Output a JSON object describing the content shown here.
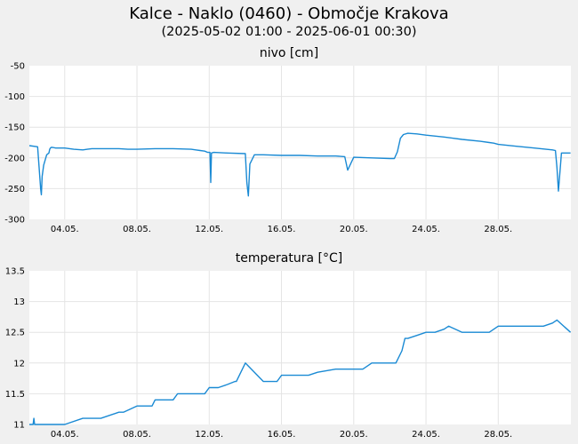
{
  "title": "Kalce - Naklo (0460) - Območje Krakova",
  "subtitle": "(2025-05-02 01:00 - 2025-06-01 00:30)",
  "colors": {
    "series": "#1a8ad4",
    "background": "#f0f0f0",
    "plot": "#ffffff",
    "grid": "#e4e4e4"
  },
  "chart_data": [
    {
      "type": "line",
      "title": "nivo [cm]",
      "x_ticks": [
        "04.05.",
        "08.05.",
        "12.05.",
        "16.05.",
        "20.05.",
        "24.05.",
        "28.05."
      ],
      "y_ticks": [
        "-50",
        "-100",
        "-150",
        "-200",
        "-250",
        "-300"
      ],
      "xlim": [
        "2025-05-02 01:00",
        "2025-06-01 00:30"
      ],
      "ylim": [
        -300,
        -50
      ],
      "grid": true,
      "series": [
        {
          "x": [
            "2025-05-02 00:00",
            "2025-05-02 12:00",
            "2025-05-02 16:00",
            "2025-05-02 17:00",
            "2025-05-02 18:00",
            "2025-05-02 20:00",
            "2025-05-03 00:00",
            "2025-05-03 03:00",
            "2025-05-03 04:00",
            "2025-05-03 05:00",
            "2025-05-03 06:00",
            "2025-05-03 08:00",
            "2025-05-03 12:00",
            "2025-05-04 00:00",
            "2025-05-04 12:00",
            "2025-05-05 00:00",
            "2025-05-05 06:00",
            "2025-05-05 12:00",
            "2025-05-06 00:00",
            "2025-05-07 00:00",
            "2025-05-07 12:00",
            "2025-05-08 00:00",
            "2025-05-09 00:00",
            "2025-05-10 00:00",
            "2025-05-11 00:00",
            "2025-05-11 06:00",
            "2025-05-11 12:00",
            "2025-05-11 18:00",
            "2025-05-11 22:00",
            "2025-05-12 01:00",
            "2025-05-12 02:00",
            "2025-05-12 03:00",
            "2025-05-12 06:00",
            "2025-05-13 00:00",
            "2025-05-14 00:00",
            "2025-05-14 02:00",
            "2025-05-14 04:00",
            "2025-05-14 06:00",
            "2025-05-14 12:00",
            "2025-05-15 00:00",
            "2025-05-16 00:00",
            "2025-05-17 00:00",
            "2025-05-18 00:00",
            "2025-05-19 00:00",
            "2025-05-19 12:00",
            "2025-05-19 16:00",
            "2025-05-20 00:00",
            "2025-05-21 00:00",
            "2025-05-22 00:00",
            "2025-05-22 06:00",
            "2025-05-22 10:00",
            "2025-05-22 14:00",
            "2025-05-22 18:00",
            "2025-05-23 00:00",
            "2025-05-23 12:00",
            "2025-05-24 00:00",
            "2025-05-25 00:00",
            "2025-05-26 00:00",
            "2025-05-27 00:00",
            "2025-05-27 12:00",
            "2025-05-27 18:00",
            "2025-05-28 00:00",
            "2025-05-29 00:00",
            "2025-05-30 00:00",
            "2025-05-31 00:00",
            "2025-05-31 04:00",
            "2025-05-31 06:00",
            "2025-05-31 08:00",
            "2025-05-31 12:00",
            "2025-06-01 00:00"
          ],
          "y": [
            -180,
            -182,
            -250,
            -260,
            -230,
            -212,
            -195,
            -192,
            -186,
            -184,
            -183,
            -183,
            -184,
            -184,
            -186,
            -187,
            -186,
            -185,
            -185,
            -185,
            -186,
            -186,
            -185,
            -185,
            -186,
            -187,
            -188,
            -189,
            -191,
            -191,
            -240,
            -192,
            -191,
            -192,
            -193,
            -240,
            -262,
            -210,
            -195,
            -195,
            -196,
            -196,
            -197,
            -197,
            -198,
            -220,
            -199,
            -200,
            -201,
            -201,
            -190,
            -168,
            -162,
            -160,
            -161,
            -163,
            -166,
            -170,
            -173,
            -175,
            -176,
            -178,
            -181,
            -184,
            -187,
            -188,
            -215,
            -254,
            -192,
            -192
          ]
        }
      ]
    },
    {
      "type": "line",
      "title": "temperatura [°C]",
      "x_ticks": [
        "04.05.",
        "08.05.",
        "12.05.",
        "16.05.",
        "20.05.",
        "24.05.",
        "28.05."
      ],
      "y_ticks": [
        "13.5",
        "13",
        "12.5",
        "12",
        "11.5",
        "11"
      ],
      "xlim": [
        "2025-05-02 01:00",
        "2025-06-01 00:30"
      ],
      "ylim": [
        11,
        13.5
      ],
      "grid": true,
      "series": [
        {
          "x": [
            "2025-05-02 00:00",
            "2025-05-02 06:00",
            "2025-05-02 07:00",
            "2025-05-02 08:00",
            "2025-05-03 00:00",
            "2025-05-03 12:00",
            "2025-05-04 00:00",
            "2025-05-05 00:00",
            "2025-05-05 18:00",
            "2025-05-06 00:00",
            "2025-05-07 00:00",
            "2025-05-07 06:00",
            "2025-05-08 00:00",
            "2025-05-08 20:00",
            "2025-05-09 00:00",
            "2025-05-10 00:00",
            "2025-05-10 06:00",
            "2025-05-11 00:00",
            "2025-05-11 18:00",
            "2025-05-12 00:00",
            "2025-05-12 12:00",
            "2025-05-13 00:00",
            "2025-05-13 10:00",
            "2025-05-13 12:00",
            "2025-05-14 00:00",
            "2025-05-15 00:00",
            "2025-05-15 18:00",
            "2025-05-16 00:00",
            "2025-05-17 00:00",
            "2025-05-17 12:00",
            "2025-05-18 00:00",
            "2025-05-19 00:00",
            "2025-05-20 00:00",
            "2025-05-20 12:00",
            "2025-05-21 00:00",
            "2025-05-22 00:00",
            "2025-05-22 08:00",
            "2025-05-22 16:00",
            "2025-05-22 20:00",
            "2025-05-23 00:00",
            "2025-05-23 12:00",
            "2025-05-24 00:00",
            "2025-05-24 12:00",
            "2025-05-25 00:00",
            "2025-05-25 06:00",
            "2025-05-26 00:00",
            "2025-05-27 00:00",
            "2025-05-27 12:00",
            "2025-05-28 00:00",
            "2025-05-28 12:00",
            "2025-05-29 00:00",
            "2025-05-30 00:00",
            "2025-05-30 12:00",
            "2025-05-31 00:00",
            "2025-05-31 06:00",
            "2025-06-01 00:00"
          ],
          "y": [
            11.0,
            11.0,
            11.1,
            11.0,
            11.0,
            11.0,
            11.0,
            11.1,
            11.1,
            11.1,
            11.2,
            11.2,
            11.3,
            11.3,
            11.4,
            11.4,
            11.5,
            11.5,
            11.5,
            11.6,
            11.6,
            11.65,
            11.7,
            11.7,
            12.0,
            11.7,
            11.7,
            11.8,
            11.8,
            11.8,
            11.85,
            11.9,
            11.9,
            11.9,
            12.0,
            12.0,
            12.0,
            12.2,
            12.4,
            12.4,
            12.45,
            12.5,
            12.5,
            12.55,
            12.6,
            12.5,
            12.5,
            12.5,
            12.6,
            12.6,
            12.6,
            12.6,
            12.6,
            12.65,
            12.7,
            12.5
          ]
        }
      ]
    }
  ]
}
